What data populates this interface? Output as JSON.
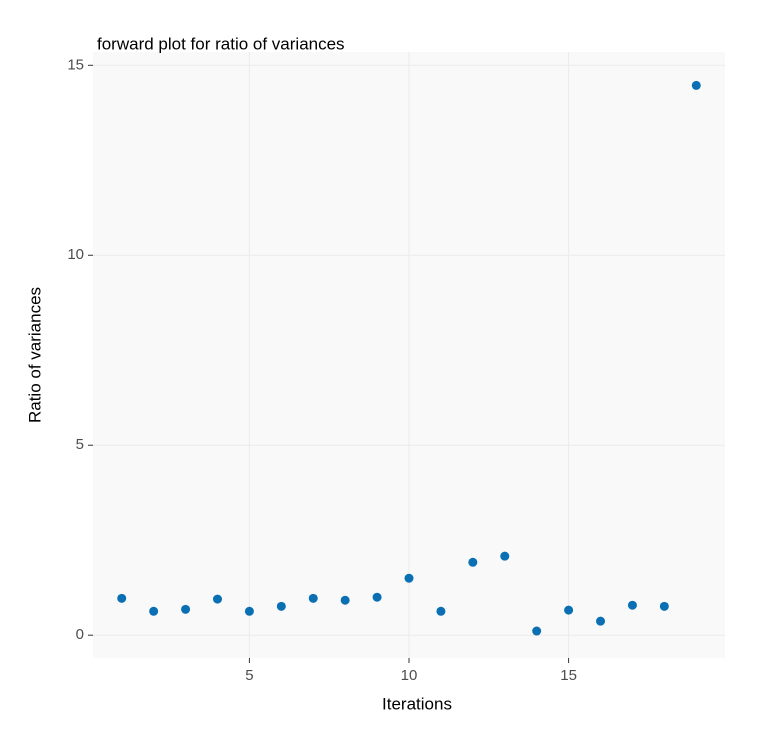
{
  "chart_data": {
    "type": "scatter",
    "title": "forward plot for ratio of variances",
    "xlabel": "Iterations",
    "ylabel": "Ratio of variances",
    "x": [
      1,
      2,
      3,
      4,
      5,
      6,
      7,
      8,
      9,
      10,
      11,
      12,
      13,
      14,
      15,
      16,
      17,
      18,
      19
    ],
    "values": [
      0.97,
      0.63,
      0.68,
      0.95,
      0.63,
      0.76,
      0.97,
      0.92,
      1.0,
      1.5,
      0.63,
      1.92,
      2.08,
      0.11,
      0.66,
      0.37,
      0.79,
      0.76,
      14.47
    ],
    "color": "#0a6fb3",
    "xlim": [
      0.1,
      19.9
    ],
    "ylim": [
      -0.6,
      15.35
    ],
    "xticks": [
      5,
      10,
      15
    ],
    "yticks": [
      0,
      5,
      10,
      15
    ],
    "grid": true
  }
}
